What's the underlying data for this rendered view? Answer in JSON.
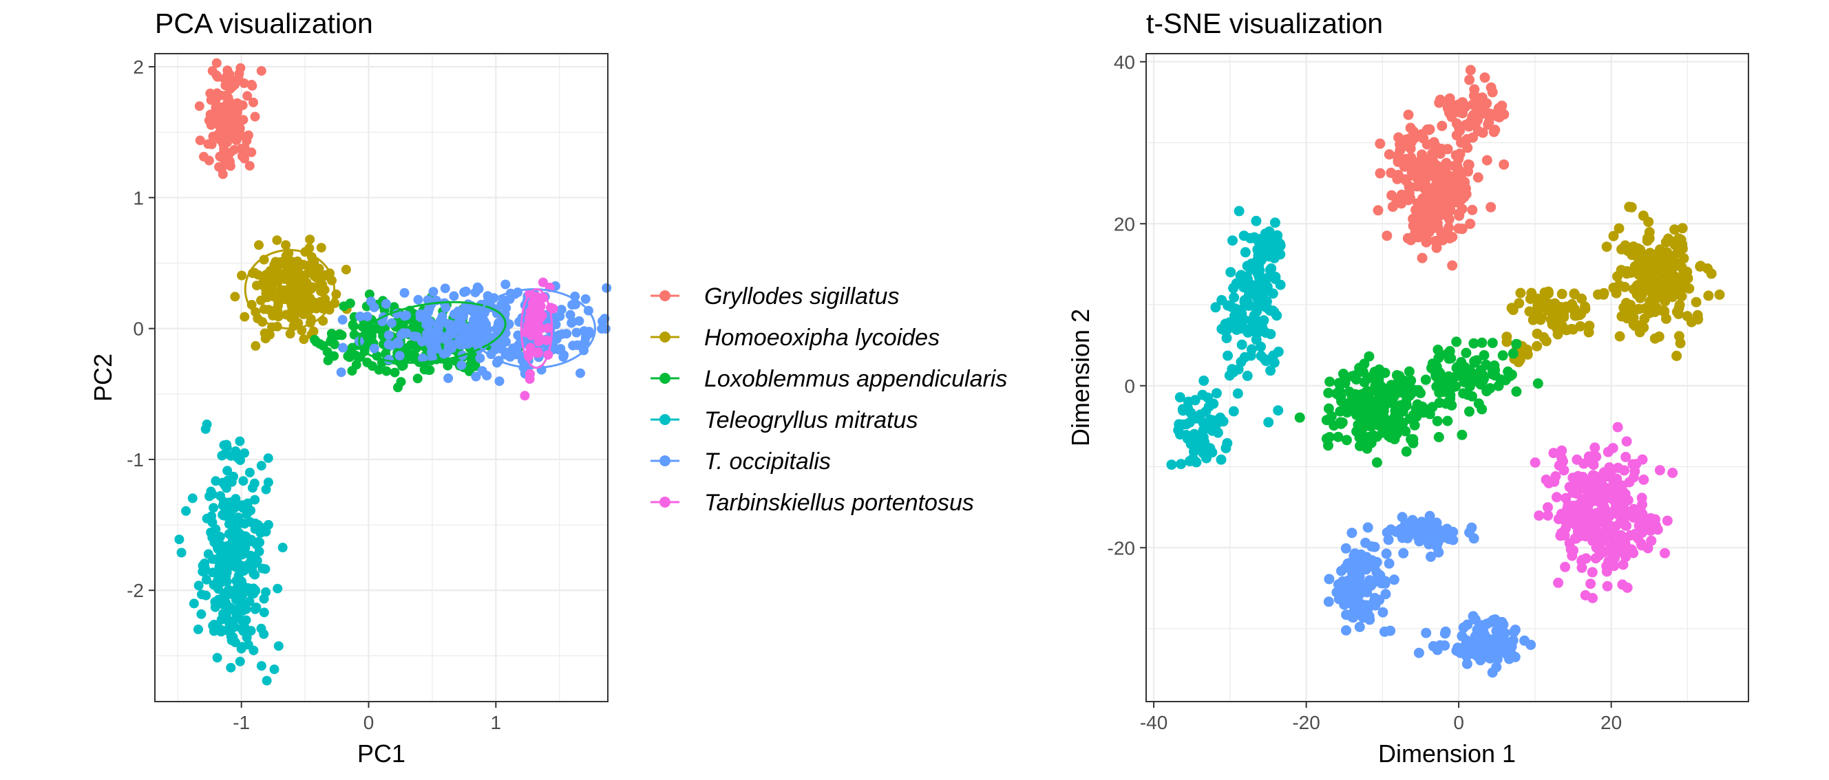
{
  "legend": {
    "entries": [
      {
        "label": "Gryllodes sigillatus",
        "color": "#F8766D"
      },
      {
        "label": "Homoeoxipha lycoides",
        "color": "#B79F00"
      },
      {
        "label": "Loxoblemmus appendicularis",
        "color": "#00BA38"
      },
      {
        "label": "Teleogryllus mitratus",
        "color": "#00BFC4"
      },
      {
        "label": "T. occipitalis",
        "color": "#619CFF"
      },
      {
        "label": "Tarbinskiellus portentosus",
        "color": "#F564E3"
      }
    ]
  },
  "chart_data": [
    {
      "type": "scatter",
      "title": "PCA visualization",
      "xlabel": "PC1",
      "ylabel": "PC2",
      "xlim": [
        -1.68,
        1.88
      ],
      "ylim": [
        -2.85,
        2.1
      ],
      "xticks": [
        -1,
        0,
        1
      ],
      "yticks": [
        -2,
        -1,
        0,
        1,
        2
      ],
      "grid": true,
      "ellipses": true,
      "series": [
        {
          "name": "Gryllodes sigillatus",
          "color": "#F8766D",
          "center": [
            -1.1,
            1.6
          ],
          "spread": [
            0.09,
            0.22
          ],
          "n": 140,
          "ellipse": null
        },
        {
          "name": "Homoeoxipha lycoides",
          "color": "#B79F00",
          "center": [
            -0.6,
            0.28
          ],
          "spread": [
            0.17,
            0.16
          ],
          "n": 200,
          "ellipse": {
            "cx": -0.62,
            "cy": 0.3,
            "rx": 0.35,
            "ry": 0.3,
            "angle": 0
          }
        },
        {
          "name": "Loxoblemmus appendicularis",
          "color": "#00BA38",
          "center": [
            0.35,
            -0.1
          ],
          "spread": [
            0.35,
            0.13
          ],
          "n": 260,
          "ellipse": {
            "cx": 0.5,
            "cy": -0.03,
            "rx": 0.58,
            "ry": 0.22,
            "angle": 8
          }
        },
        {
          "name": "Teleogryllus mitratus",
          "color": "#00BFC4",
          "center": [
            -1.05,
            -1.8
          ],
          "spread": [
            0.15,
            0.38
          ],
          "n": 280,
          "ellipse": null
        },
        {
          "name": "T. occipitalis",
          "color": "#619CFF",
          "center": [
            0.95,
            0.0
          ],
          "spread": [
            0.48,
            0.14
          ],
          "n": 320,
          "ellipse": {
            "cx": 1.3,
            "cy": 0.0,
            "rx": 0.48,
            "ry": 0.3,
            "angle": 0
          }
        },
        {
          "name": "Tarbinskiellus portentosus",
          "color": "#F564E3",
          "center": [
            1.32,
            0.05
          ],
          "spread": [
            0.05,
            0.14
          ],
          "n": 60,
          "ellipse": {
            "cx": 1.32,
            "cy": 0.0,
            "rx": 0.12,
            "ry": 0.3,
            "angle": 0
          }
        }
      ]
    },
    {
      "type": "scatter",
      "title": "t-SNE visualization",
      "xlabel": "Dimension 1",
      "ylabel": "Dimension 2",
      "xlim": [
        -41,
        38
      ],
      "ylim": [
        -39,
        41
      ],
      "xticks": [
        -40,
        -20,
        0,
        20
      ],
      "yticks": [
        -20,
        0,
        20,
        40
      ],
      "grid": true,
      "series": [
        {
          "name": "Gryllodes sigillatus",
          "color": "#F8766D",
          "clusters": [
            {
              "center": [
                -3.5,
                25
              ],
              "spread": [
                2.8,
                4.0
              ],
              "n": 260
            },
            {
              "center": [
                2.5,
                34
              ],
              "spread": [
                2.0,
                1.8
              ],
              "n": 60
            }
          ]
        },
        {
          "name": "Homoeoxipha lycoides",
          "color": "#B79F00",
          "clusters": [
            {
              "center": [
                26,
                13
              ],
              "spread": [
                2.8,
                3.6
              ],
              "n": 220
            },
            {
              "center": [
                13,
                9
              ],
              "spread": [
                2.5,
                1.4
              ],
              "n": 70
            },
            {
              "center": [
                8.5,
                4.5
              ],
              "spread": [
                1.5,
                1.0
              ],
              "n": 15
            }
          ]
        },
        {
          "name": "Loxoblemmus appendicularis",
          "color": "#00BA38",
          "clusters": [
            {
              "center": [
                -10.5,
                -2.5
              ],
              "spread": [
                3.5,
                2.7
              ],
              "n": 240
            },
            {
              "center": [
                1,
                1.5
              ],
              "spread": [
                3.0,
                1.8
              ],
              "n": 90
            }
          ]
        },
        {
          "name": "Teleogryllus mitratus",
          "color": "#00BFC4",
          "clusters": [
            {
              "center": [
                -27,
                10
              ],
              "spread": [
                1.8,
                5.0
              ],
              "n": 130
            },
            {
              "center": [
                -33.5,
                -5.5
              ],
              "spread": [
                1.8,
                2.5
              ],
              "n": 70
            },
            {
              "center": [
                -25,
                17
              ],
              "spread": [
                1.2,
                1.2
              ],
              "n": 30
            }
          ]
        },
        {
          "name": "T. occipitalis",
          "color": "#619CFF",
          "clusters": [
            {
              "center": [
                -13,
                -25
              ],
              "spread": [
                1.8,
                2.8
              ],
              "n": 110
            },
            {
              "center": [
                -5,
                -18
              ],
              "spread": [
                3.0,
                1.0
              ],
              "n": 70
            },
            {
              "center": [
                3,
                -32
              ],
              "spread": [
                2.6,
                1.4
              ],
              "n": 100
            }
          ]
        },
        {
          "name": "Tarbinskiellus portentosus",
          "color": "#F564E3",
          "clusters": [
            {
              "center": [
                18.5,
                -15.5
              ],
              "spread": [
                3.2,
                3.6
              ],
              "n": 320
            }
          ]
        }
      ]
    }
  ]
}
